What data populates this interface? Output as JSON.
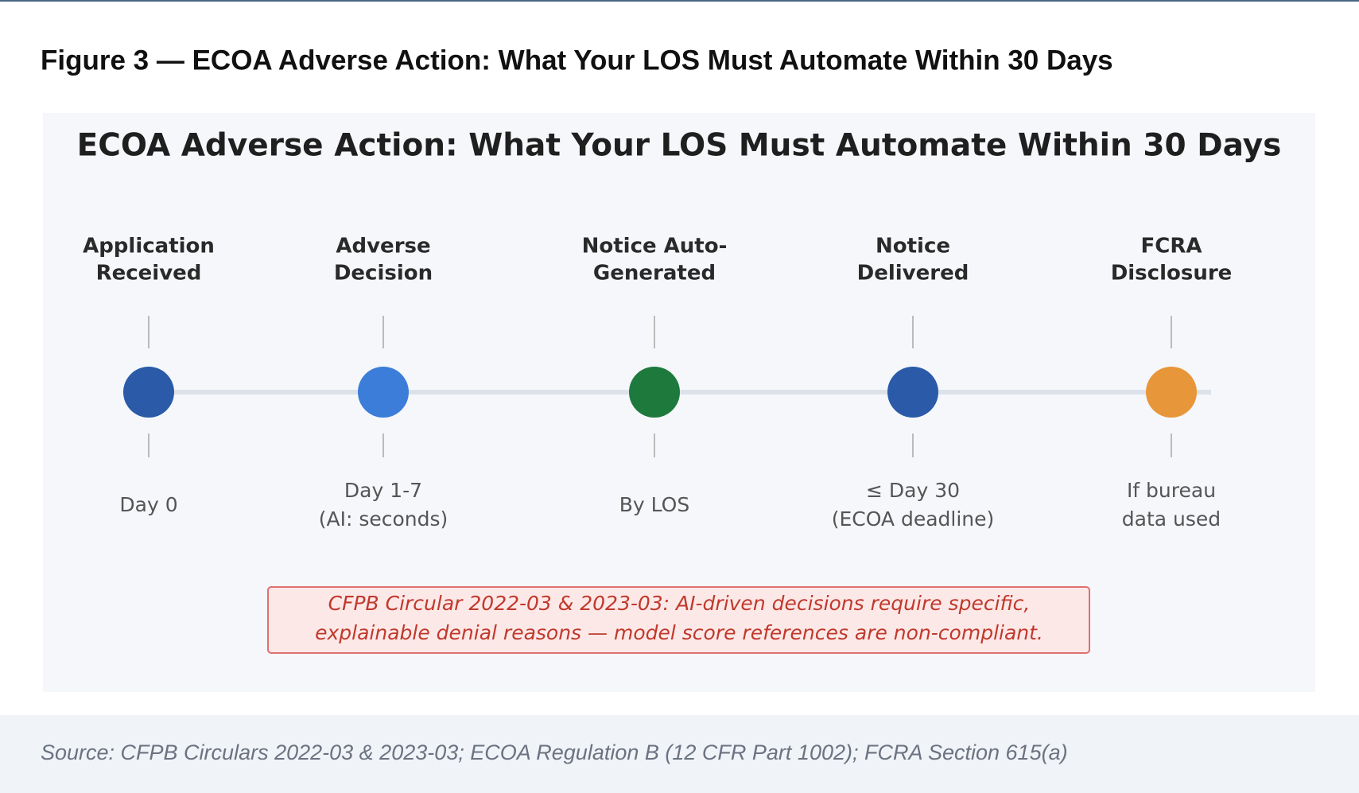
{
  "header": {
    "title": "Figure 3 — ECOA Adverse Action: What Your LOS Must Automate Within 30 Days"
  },
  "figure": {
    "title": "ECOA Adverse Action: What Your LOS Must Automate Within 30 Days",
    "milestones": [
      {
        "label": [
          "Application",
          "Received"
        ],
        "detail": [
          "Day 0"
        ]
      },
      {
        "label": [
          "Adverse",
          "Decision"
        ],
        "detail": [
          "Day 1-7",
          "(AI: seconds)"
        ]
      },
      {
        "label": [
          "Notice Auto-",
          "Generated"
        ],
        "detail": [
          "By LOS"
        ]
      },
      {
        "label": [
          "Notice",
          "Delivered"
        ],
        "detail": [
          "≤ Day 30",
          "(ECOA deadline)"
        ]
      },
      {
        "label": [
          "FCRA",
          "Disclosure"
        ],
        "detail": [
          "If bureau",
          "data used"
        ]
      }
    ],
    "callout": [
      "CFPB Circular 2022-03 & 2023-03: AI-driven decisions require specific,",
      "explainable denial reasons — model score references are non-compliant."
    ]
  },
  "source": "Source: CFPB Circulars 2022-03 & 2023-03; ECOA Regulation B (12 CFR Part 1002); FCRA Section 615(a)"
}
